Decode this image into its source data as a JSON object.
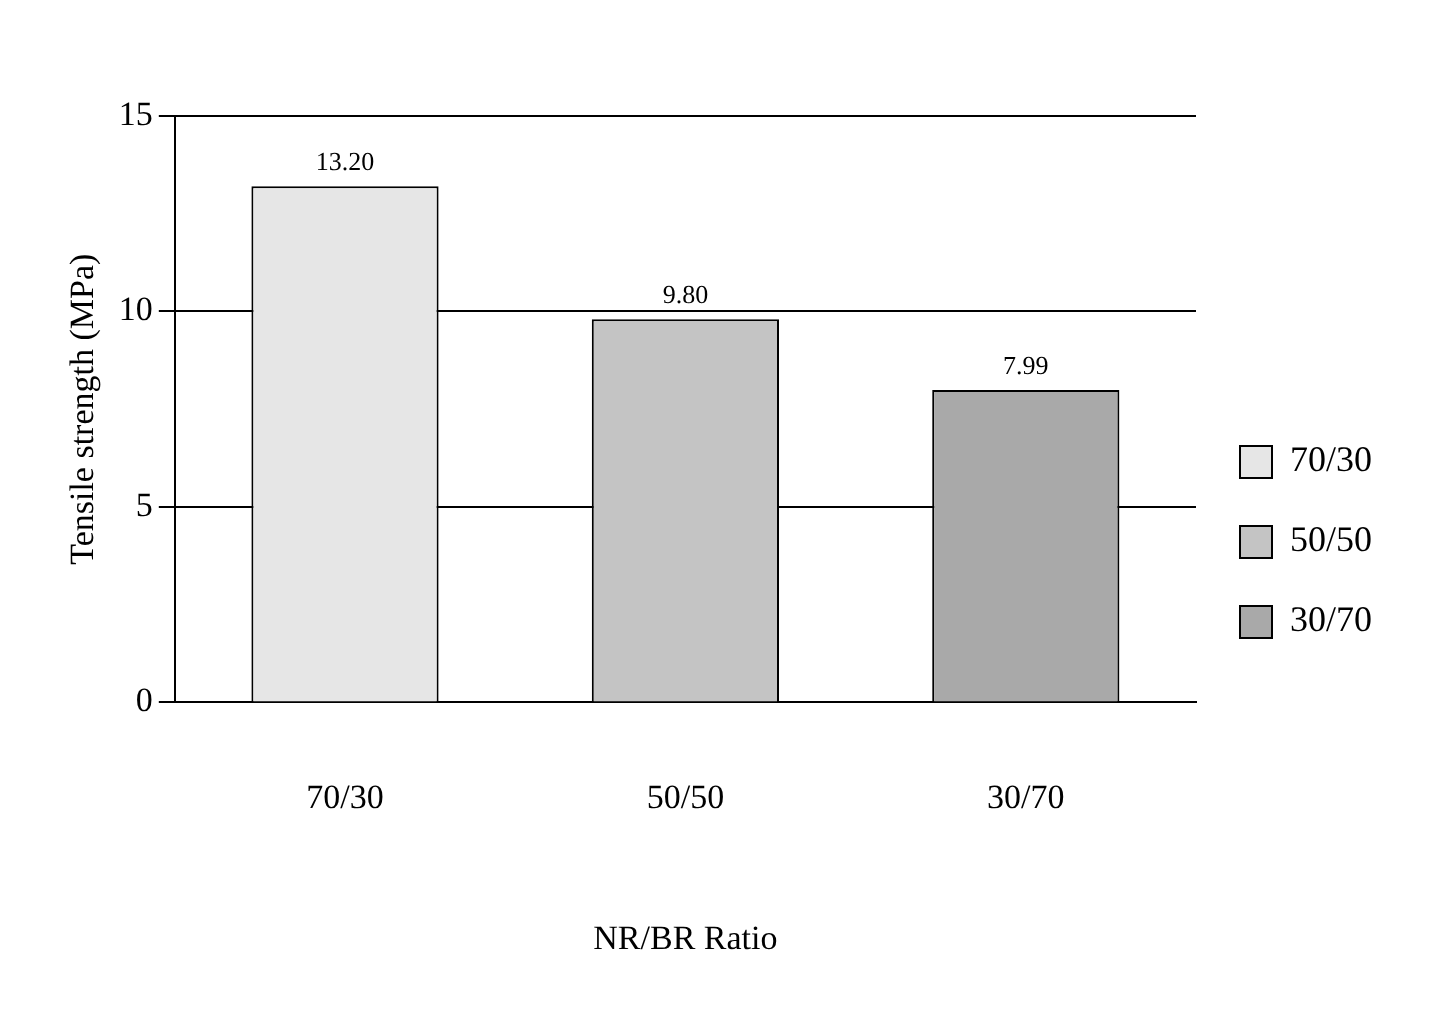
{
  "chart_data": {
    "type": "bar",
    "xlabel": "NR/BR Ratio",
    "ylabel": "Tensile strength (MPa)",
    "categories": [
      "70/30",
      "50/50",
      "30/70"
    ],
    "series": [
      {
        "name": "70/30",
        "color": "#e6e6e6",
        "values": [
          13.2,
          null,
          null
        ],
        "value_labels": [
          "13.20",
          null,
          null
        ]
      },
      {
        "name": "50/50",
        "color": "#c4c4c4",
        "values": [
          null,
          9.8,
          null
        ],
        "value_labels": [
          null,
          "9.80",
          null
        ]
      },
      {
        "name": "30/70",
        "color": "#a9a9a9",
        "values": [
          null,
          null,
          7.99
        ],
        "value_labels": [
          null,
          null,
          "7.99"
        ]
      }
    ],
    "ylim": [
      0,
      15
    ],
    "yticks": [
      0,
      5,
      10,
      15
    ],
    "grid": "y",
    "legend": "right"
  }
}
